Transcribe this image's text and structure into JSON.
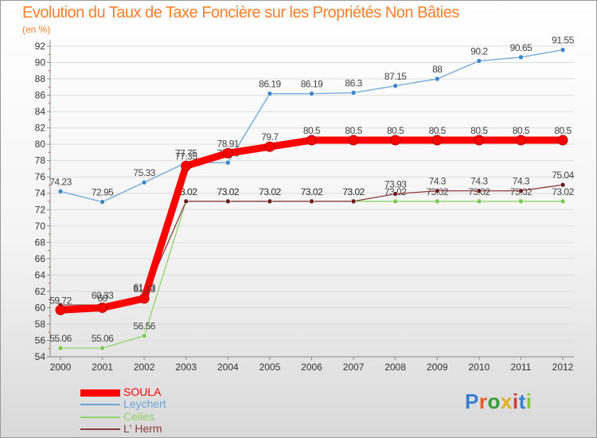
{
  "title": "Evolution du Taux de Taxe Foncière sur les Propriétés Non Bâties",
  "unit_label": "(en %)",
  "brand": {
    "text": "Proxiti"
  },
  "chart_data": {
    "type": "line",
    "title": "Evolution du Taux de Taxe Foncière sur les Propriétés Non Bâties",
    "ylabel": "(en %)",
    "xlabel": "",
    "x": [
      "2000",
      "2001",
      "2002",
      "2003",
      "2004",
      "2005",
      "2006",
      "2007",
      "2008",
      "2009",
      "2010",
      "2011",
      "2012"
    ],
    "ylim": [
      54,
      92
    ],
    "yticks": [
      54,
      56,
      58,
      60,
      62,
      64,
      66,
      68,
      70,
      72,
      74,
      76,
      78,
      80,
      82,
      84,
      86,
      88,
      90,
      92
    ],
    "grid": true,
    "legend_position": "bottom-left",
    "series": [
      {
        "name": "Leychert",
        "color": "#6aa4d8",
        "marker": "#3a86c8",
        "values": [
          74.23,
          72.95,
          75.33,
          77.75,
          77.75,
          86.19,
          86.19,
          86.3,
          87.15,
          88,
          90.2,
          90.65,
          91.55
        ],
        "labels": [
          "74.23",
          "72.95",
          "75.33",
          "77.75",
          "77.75",
          "86.19",
          "86.19",
          "86.3",
          "87.15",
          "88",
          "90.2",
          "90.65",
          "91.55"
        ]
      },
      {
        "name": "Celles",
        "color": "#8ed46a",
        "marker": "#7cc850",
        "values": [
          55.06,
          55.06,
          56.56,
          73.02,
          73.02,
          73.02,
          73.02,
          73.02,
          73.02,
          73.02,
          73.02,
          73.02,
          73.02
        ],
        "labels": [
          "55.06",
          "55.06",
          "56.56",
          "73.02",
          "73.02",
          "73.02",
          "73.02",
          "73.02",
          "73.02",
          "73.02",
          "73.02",
          "73.02",
          "73.02"
        ]
      },
      {
        "name": "L' Herm",
        "color": "#8a3d3d",
        "marker": "#6b1f1f",
        "values": [
          60.33,
          60.33,
          61.33,
          73.02,
          73.02,
          73.02,
          73.02,
          73.02,
          73.93,
          74.3,
          74.3,
          74.3,
          75.04
        ],
        "labels": [
          "",
          "60.33",
          "61.33",
          "73.02",
          "73.02",
          "73.02",
          "73.02",
          "73.02",
          "73.93",
          "74.3",
          "74.3",
          "74.3",
          "75.04"
        ]
      },
      {
        "name": "SOULA",
        "color": "#ff0000",
        "marker": "#c80000",
        "values": [
          59.72,
          60.0,
          61.13,
          77.35,
          78.91,
          79.7,
          80.5,
          80.5,
          80.5,
          80.5,
          80.5,
          80.5,
          80.5
        ],
        "labels": [
          "59.72",
          "60",
          "61.13",
          "77.35",
          "78.91",
          "79.7",
          "80.5",
          "80.5",
          "80.5",
          "80.5",
          "80.5",
          "80.5",
          "80.5"
        ]
      }
    ],
    "legend": [
      {
        "name": "SOULA",
        "color": "#ff0000"
      },
      {
        "name": "Leychert",
        "color": "#6aa4d8"
      },
      {
        "name": "Celles",
        "color": "#8ed46a"
      },
      {
        "name": "L' Herm",
        "color": "#8a3d3d"
      }
    ]
  }
}
